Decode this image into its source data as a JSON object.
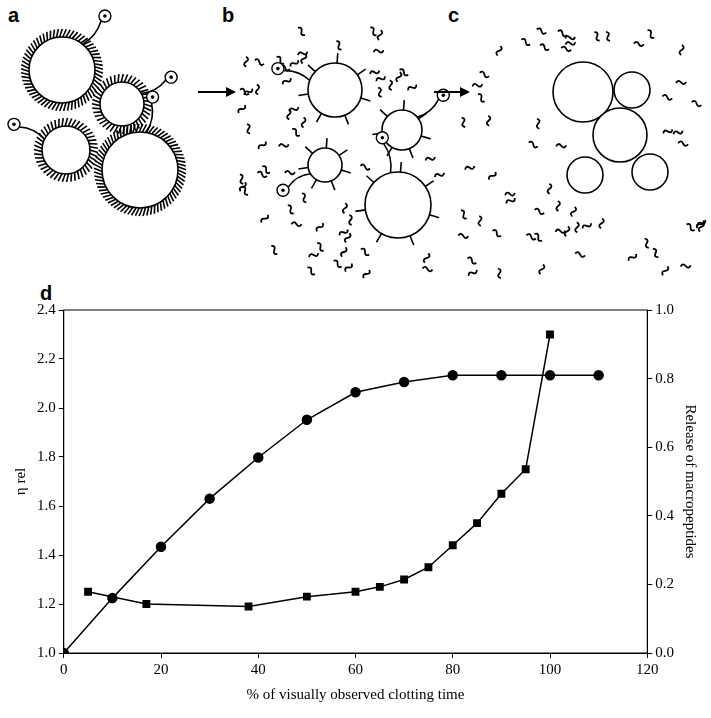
{
  "diagram": {
    "panels": [
      {
        "label": "a"
      },
      {
        "label": "b"
      },
      {
        "label": "c"
      }
    ]
  },
  "chart_data": {
    "type": "line",
    "label": "d",
    "xlabel": "% of visually observed clotting time",
    "ylabel": "η rel",
    "y2label": "Release of macropeptides",
    "xlim": [
      0,
      120
    ],
    "xticks": [
      0,
      20,
      40,
      60,
      80,
      100,
      120
    ],
    "ylim": [
      1.0,
      2.4
    ],
    "yticks": [
      {
        "value": 1.0,
        "label": "1.0"
      },
      {
        "value": 1.2,
        "label": "1.2"
      },
      {
        "value": 1.4,
        "label": "1.4"
      },
      {
        "value": 1.6,
        "label": "1.6"
      },
      {
        "value": 1.8,
        "label": "1.8"
      },
      {
        "value": 2.0,
        "label": "2.0"
      },
      {
        "value": 2.2,
        "label": "2.2"
      },
      {
        "value": 2.4,
        "label": "2.4"
      }
    ],
    "y2lim": [
      0.0,
      1.0
    ],
    "y2ticks": [
      {
        "value": 0.0,
        "label": "0.0"
      },
      {
        "value": 0.2,
        "label": "0.2"
      },
      {
        "value": 0.4,
        "label": "0.4"
      },
      {
        "value": 0.6,
        "label": "0.6"
      },
      {
        "value": 0.8,
        "label": "0.8"
      },
      {
        "value": 1.0,
        "label": "1.0"
      }
    ],
    "grid": false,
    "series": [
      {
        "name": "η rel",
        "color": "#000000",
        "marker": "square",
        "line_style": "solid",
        "x": [
          5,
          17,
          38,
          50,
          60,
          65,
          70,
          75,
          80,
          85,
          90,
          95,
          100
        ],
        "values": [
          1.25,
          1.2,
          1.19,
          1.23,
          1.25,
          1.27,
          1.3,
          1.35,
          1.44,
          1.53,
          1.65,
          1.75,
          2.3
        ]
      },
      {
        "name": "Release of macropeptides",
        "color": "#000000",
        "marker": "circle",
        "line_style": "solid",
        "axis": "y2",
        "x": [
          0,
          10,
          20,
          30,
          40,
          50,
          60,
          70,
          80,
          90,
          100,
          110
        ],
        "values": [
          0.0,
          0.16,
          0.31,
          0.45,
          0.57,
          0.68,
          0.76,
          0.79,
          0.81,
          0.81,
          0.81,
          0.81
        ]
      }
    ]
  }
}
